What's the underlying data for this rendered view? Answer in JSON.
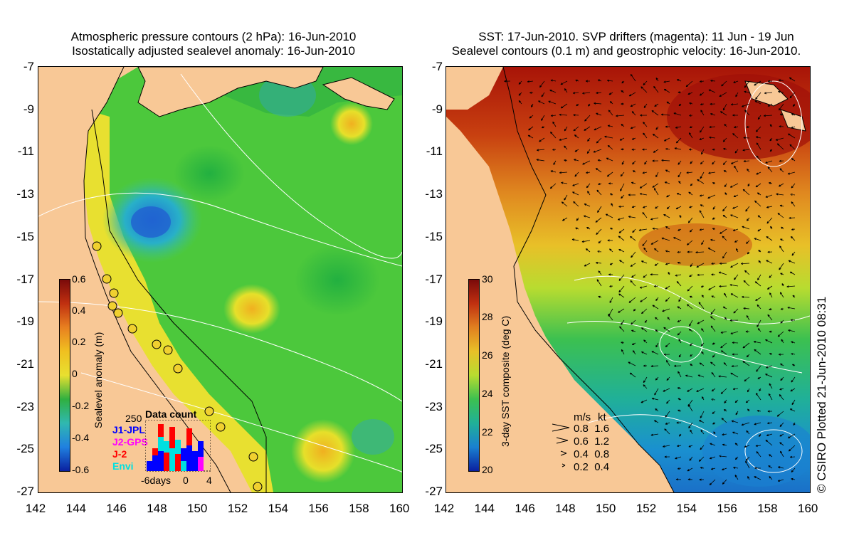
{
  "left": {
    "title1": "Atmospheric pressure contours (2 hPa): 16-Jun-2010",
    "title2": "Isostatically adjusted sealevel anomaly: 16-Jun-2010",
    "colorbar_title": "Sealevel anomaly (m)",
    "colorbar_ticks": [
      "0.6",
      "0.4",
      "0.2",
      "0",
      "-0.2",
      "-0.4",
      "-0.6"
    ],
    "inset": {
      "title": "Data count",
      "max_label": "250",
      "missions": [
        {
          "name": "J1-JPL",
          "color": "#0000ff"
        },
        {
          "name": "J2-GPS",
          "color": "#ff00ff"
        },
        {
          "name": "J-2",
          "color": "#ff0000"
        },
        {
          "name": "Envi",
          "color": "#00e0e0"
        }
      ],
      "xticks": [
        "-6days",
        "0",
        "4"
      ]
    }
  },
  "right": {
    "title1": "SST: 17-Jun-2010. SVP drifters (magenta): 11 Jun - 19 Jun",
    "title2": "Sealevel contours (0.1 m) and geostrophic velocity: 16-Jun-2010.",
    "colorbar_title": "3-day SST composite (deg C)",
    "colorbar_ticks": [
      "30",
      "28",
      "26",
      "24",
      "22",
      "20"
    ],
    "velocity_legend": {
      "header_ms": "m/s",
      "header_kt": "kt",
      "rows": [
        {
          "ms": "0.8",
          "kt": "1.6"
        },
        {
          "ms": "0.6",
          "kt": "1.2"
        },
        {
          "ms": "0.4",
          "kt": "0.8"
        },
        {
          "ms": "0.2",
          "kt": "0.4"
        }
      ]
    },
    "credit": "© CSIRO Plotted 21-Jun-2010 08:31"
  },
  "axes": {
    "lat_labels": [
      "-7",
      "-9",
      "-11",
      "-13",
      "-15",
      "-17",
      "-19",
      "-21",
      "-23",
      "-25",
      "-27"
    ],
    "lon_labels": [
      "142",
      "144",
      "146",
      "148",
      "150",
      "152",
      "154",
      "156",
      "158",
      "160"
    ]
  },
  "colors": {
    "land": "#f8c896",
    "sla_neutral": "#2fbf3a",
    "sst_warm": "#b01a08",
    "sst_cool": "#1a9ac8"
  }
}
